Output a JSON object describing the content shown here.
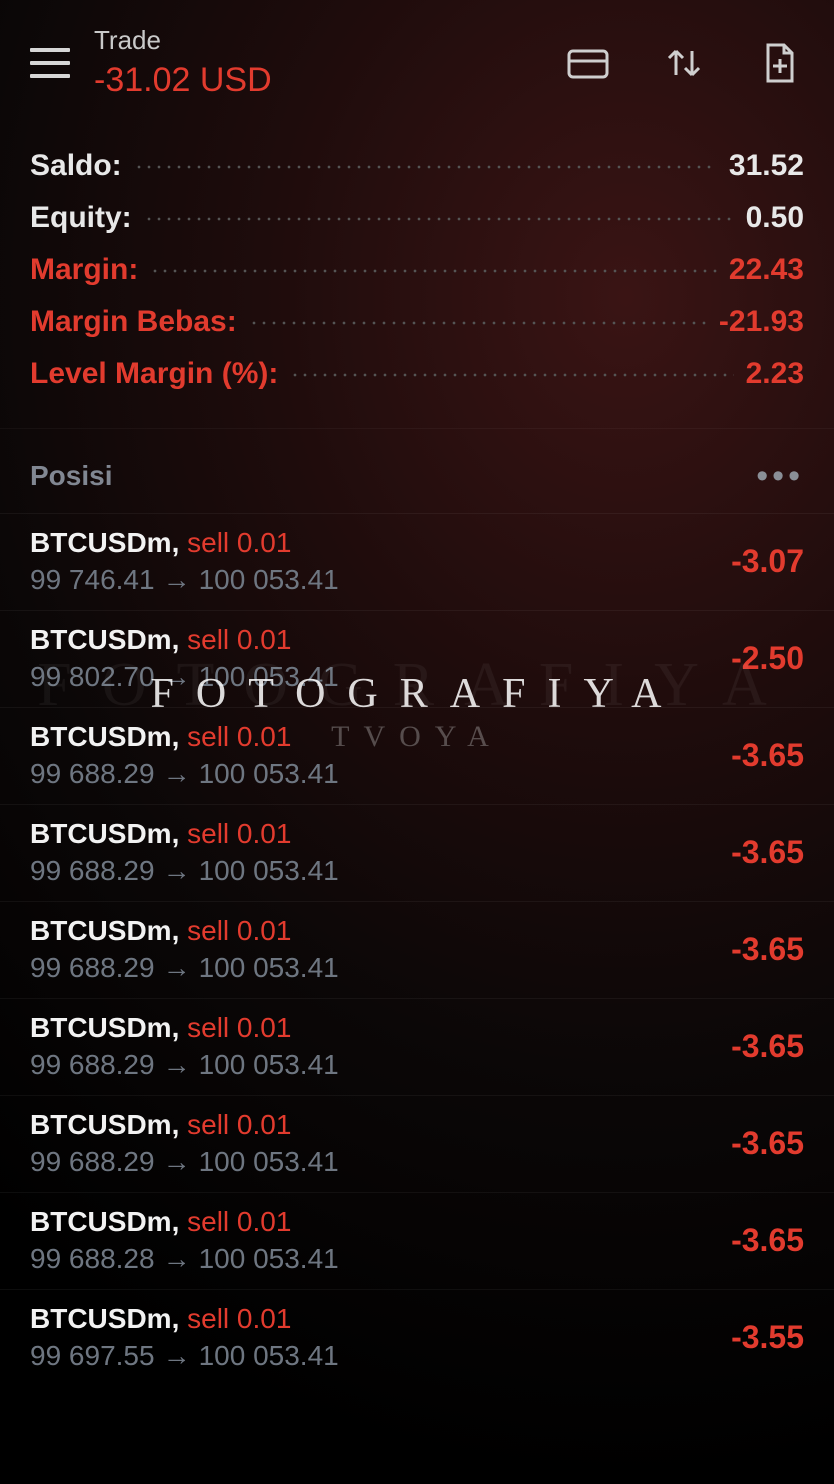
{
  "colors": {
    "negative": "#e23b2e",
    "neutral": "#e8e8e8",
    "muted": "#6e7681"
  },
  "header": {
    "title": "Trade",
    "value": "-31.02 USD",
    "value_color": "#e23b2e"
  },
  "summary": [
    {
      "label": "Saldo:",
      "value": "31.52",
      "warn": false
    },
    {
      "label": "Equity:",
      "value": "0.50",
      "warn": false
    },
    {
      "label": "Margin:",
      "value": "22.43",
      "warn": true
    },
    {
      "label": "Margin Bebas:",
      "value": "-21.93",
      "warn": true
    },
    {
      "label": "Level Margin (%):",
      "value": "2.23",
      "warn": true
    }
  ],
  "section": {
    "title": "Posisi"
  },
  "positions": [
    {
      "symbol": "BTCUSDm",
      "side": "sell",
      "lot": "0.01",
      "open": "99 746.41",
      "close": "100 053.41",
      "pl": "-3.07",
      "side_color": "#e23b2e",
      "pl_color": "#e23b2e"
    },
    {
      "symbol": "BTCUSDm",
      "side": "sell",
      "lot": "0.01",
      "open": "99 802.70",
      "close": "100 053.41",
      "pl": "-2.50",
      "side_color": "#e23b2e",
      "pl_color": "#e23b2e"
    },
    {
      "symbol": "BTCUSDm",
      "side": "sell",
      "lot": "0.01",
      "open": "99 688.29",
      "close": "100 053.41",
      "pl": "-3.65",
      "side_color": "#e23b2e",
      "pl_color": "#e23b2e"
    },
    {
      "symbol": "BTCUSDm",
      "side": "sell",
      "lot": "0.01",
      "open": "99 688.29",
      "close": "100 053.41",
      "pl": "-3.65",
      "side_color": "#e23b2e",
      "pl_color": "#e23b2e"
    },
    {
      "symbol": "BTCUSDm",
      "side": "sell",
      "lot": "0.01",
      "open": "99 688.29",
      "close": "100 053.41",
      "pl": "-3.65",
      "side_color": "#e23b2e",
      "pl_color": "#e23b2e"
    },
    {
      "symbol": "BTCUSDm",
      "side": "sell",
      "lot": "0.01",
      "open": "99 688.29",
      "close": "100 053.41",
      "pl": "-3.65",
      "side_color": "#e23b2e",
      "pl_color": "#e23b2e"
    },
    {
      "symbol": "BTCUSDm",
      "side": "sell",
      "lot": "0.01",
      "open": "99 688.29",
      "close": "100 053.41",
      "pl": "-3.65",
      "side_color": "#e23b2e",
      "pl_color": "#e23b2e"
    },
    {
      "symbol": "BTCUSDm",
      "side": "sell",
      "lot": "0.01",
      "open": "99 688.28",
      "close": "100 053.41",
      "pl": "-3.65",
      "side_color": "#e23b2e",
      "pl_color": "#e23b2e"
    },
    {
      "symbol": "BTCUSDm",
      "side": "sell",
      "lot": "0.01",
      "open": "99 697.55",
      "close": "100 053.41",
      "pl": "-3.55",
      "side_color": "#e23b2e",
      "pl_color": "#e23b2e"
    }
  ],
  "watermark": {
    "line1": "FOTOGRAFIYA",
    "line2": "TVOYA"
  }
}
